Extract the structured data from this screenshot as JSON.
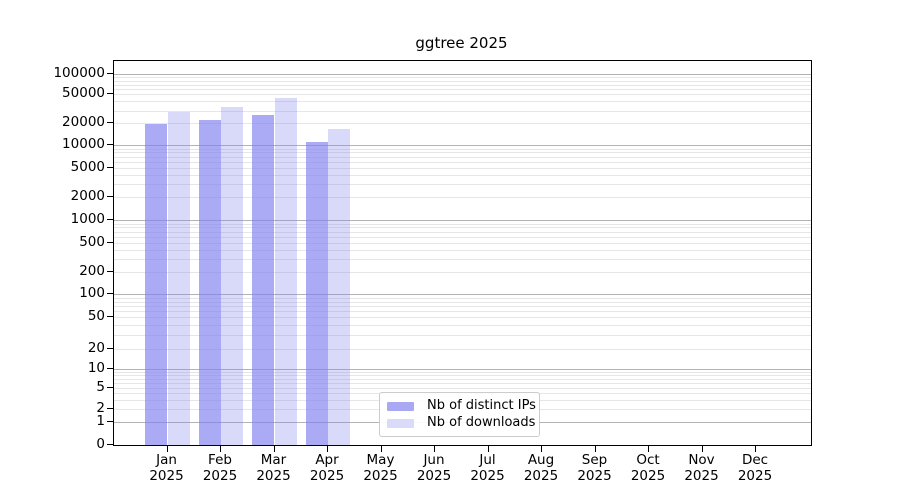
{
  "chart_data": {
    "type": "bar",
    "title": "ggtree 2025",
    "categories": [
      "Jan",
      "Feb",
      "Mar",
      "Apr",
      "May",
      "Jun",
      "Jul",
      "Aug",
      "Sep",
      "Oct",
      "Nov",
      "Dec"
    ],
    "year_label": "2025",
    "series": [
      {
        "name": "Nb of distinct IPs",
        "color": "rgba(128,128,240,0.66)",
        "legend_color": "#a9a9f3",
        "values": [
          19500,
          22000,
          26000,
          11200,
          null,
          null,
          null,
          null,
          null,
          null,
          null,
          null
        ]
      },
      {
        "name": "Nb of downloads",
        "color": "rgba(128,128,240,0.30)",
        "legend_color": "#dadaf9",
        "values": [
          29000,
          34000,
          44000,
          17000,
          null,
          null,
          null,
          null,
          null,
          null,
          null,
          null
        ]
      }
    ],
    "y_ticks": [
      0,
      1,
      2,
      5,
      10,
      20,
      50,
      100,
      200,
      500,
      1000,
      2000,
      5000,
      10000,
      20000,
      50000,
      100000
    ],
    "y_scale": "symlog",
    "ylim": [
      0,
      155000
    ],
    "grid": true,
    "legend_position": "lower center",
    "colors": {
      "major_grid": "#b3b3b3",
      "minor_grid": "#e6e6e6",
      "axis": "#000000",
      "legend_border": "#cccccc",
      "background": "#ffffff"
    }
  }
}
